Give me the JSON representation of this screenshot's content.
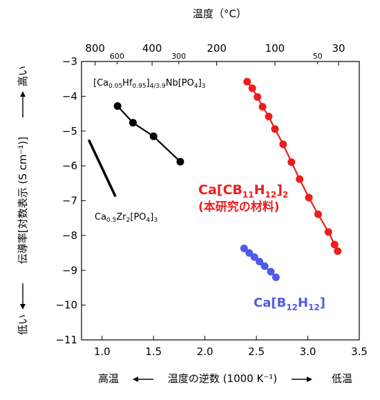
{
  "chart_data": {
    "type": "scatter",
    "top_axis": {
      "label": "温度（°C）",
      "major_ticks": [
        {
          "label": "800",
          "x": 0.932
        },
        {
          "label": "400",
          "x": 1.486
        },
        {
          "label": "200",
          "x": 2.114
        },
        {
          "label": "100",
          "x": 2.68
        },
        {
          "label": "30",
          "x": 3.299
        }
      ],
      "minor_ticks": [
        {
          "label": "600",
          "x": 1.145
        },
        {
          "label": "300",
          "x": 1.745
        },
        {
          "label": "50",
          "x": 3.095
        }
      ]
    },
    "bottom_axis": {
      "label_left": "高温",
      "label_center": "温度の逆数 (1000 K⁻¹)",
      "label_right": "低温",
      "range": [
        0.8,
        3.5
      ],
      "ticks": [
        "1.0",
        "1.5",
        "2.0",
        "2.5",
        "3.0",
        "3.5"
      ]
    },
    "left_axis": {
      "label": "伝導率[対数表示 (S cm⁻¹)]",
      "label_high": "高い",
      "label_low": "低い",
      "range": [
        -11,
        -3
      ],
      "ticks": [
        "−3",
        "−4",
        "−5",
        "−6",
        "−7",
        "−8",
        "−9",
        "−10",
        "−11"
      ]
    },
    "series": [
      {
        "name": "[Ca0.05Hf0.95]4/3.9Nb[PO4]3",
        "color": "#000000",
        "markers": true,
        "x": [
          1.15,
          1.3,
          1.5,
          1.76
        ],
        "y": [
          -4.28,
          -4.76,
          -5.15,
          -5.88
        ]
      },
      {
        "name": "Ca0.5Zr2[PO4]3",
        "color": "#000000",
        "markers": false,
        "x": [
          0.87,
          1.13
        ],
        "y": [
          -5.25,
          -6.88
        ]
      },
      {
        "name": "Ca[CB11H12]2",
        "color": "#ee1c1c",
        "markers": true,
        "x": [
          2.41,
          2.46,
          2.51,
          2.56,
          2.62,
          2.68,
          2.76,
          2.84,
          2.92,
          3.01,
          3.1,
          3.2,
          3.26,
          3.29
        ],
        "y": [
          -3.58,
          -3.77,
          -4.02,
          -4.3,
          -4.58,
          -4.94,
          -5.38,
          -5.89,
          -6.38,
          -6.91,
          -7.39,
          -7.9,
          -8.26,
          -8.45
        ]
      },
      {
        "name": "Ca[B12H12]",
        "color": "#4f5be8",
        "markers": true,
        "x": [
          2.38,
          2.43,
          2.48,
          2.53,
          2.58,
          2.64,
          2.69
        ],
        "y": [
          -8.37,
          -8.5,
          -8.62,
          -8.75,
          -8.88,
          -9.04,
          -9.2
        ]
      }
    ],
    "annotations": {
      "hf": {
        "main": "[Ca",
        "s1": "0.05",
        "m2": "Hf",
        "s2": "0.95",
        "m3": "]",
        "s3": "4/3.9",
        "m4": "Nb[PO",
        "s4": "4",
        "m5": "]",
        "s5": "3"
      },
      "zr": {
        "main": "Ca",
        "s1": "0.5",
        "m2": "Zr",
        "s2": "2",
        "m3": "[PO",
        "s3": "4",
        "m4": "]",
        "s4": "3"
      },
      "cb": {
        "main": "Ca[CB",
        "s1": "11",
        "m2": "H",
        "s2": "12",
        "m3": "]",
        "s3": "2",
        "note": "(本研究の材料)"
      },
      "b12": {
        "main": "Ca[B",
        "s1": "12",
        "m2": "H",
        "s2": "12",
        "m3": "]"
      }
    }
  }
}
